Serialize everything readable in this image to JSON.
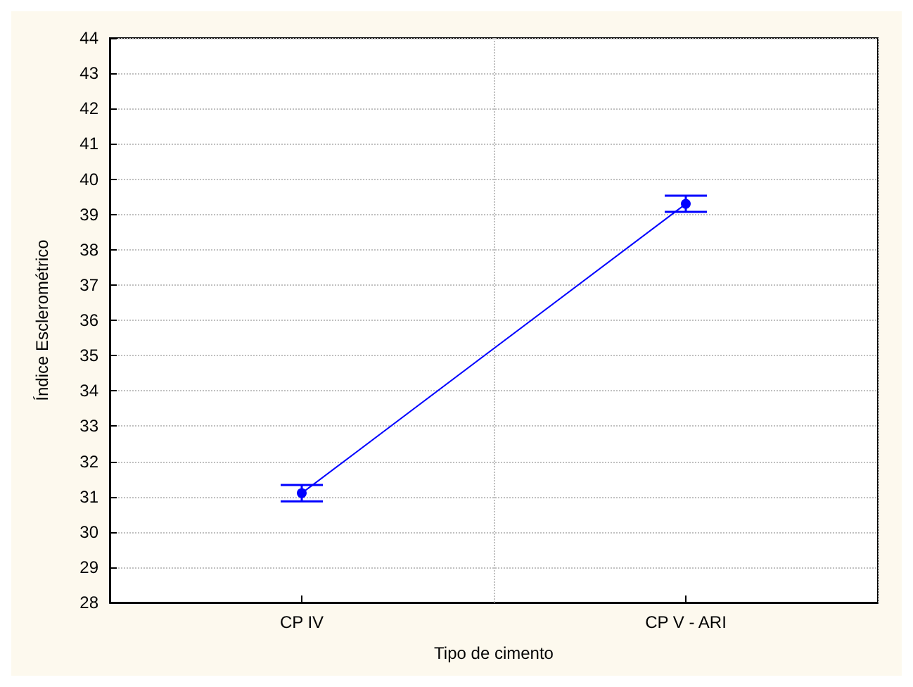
{
  "chart_data": {
    "type": "line",
    "xlabel": "Tipo de cimento",
    "ylabel": "Índice Esclerométrico",
    "categories": [
      "CP IV",
      "CP V - ARI"
    ],
    "series": [
      {
        "color": "#0000ff",
        "values": [
          31.1,
          39.3
        ],
        "errors": [
          0.23,
          0.23
        ]
      }
    ],
    "ylim": [
      28,
      44
    ],
    "yticks": [
      28,
      29,
      30,
      31,
      32,
      33,
      34,
      35,
      36,
      37,
      38,
      39,
      40,
      41,
      42,
      43,
      44
    ],
    "grid": true,
    "marker": "circle",
    "line_style": "solid"
  }
}
